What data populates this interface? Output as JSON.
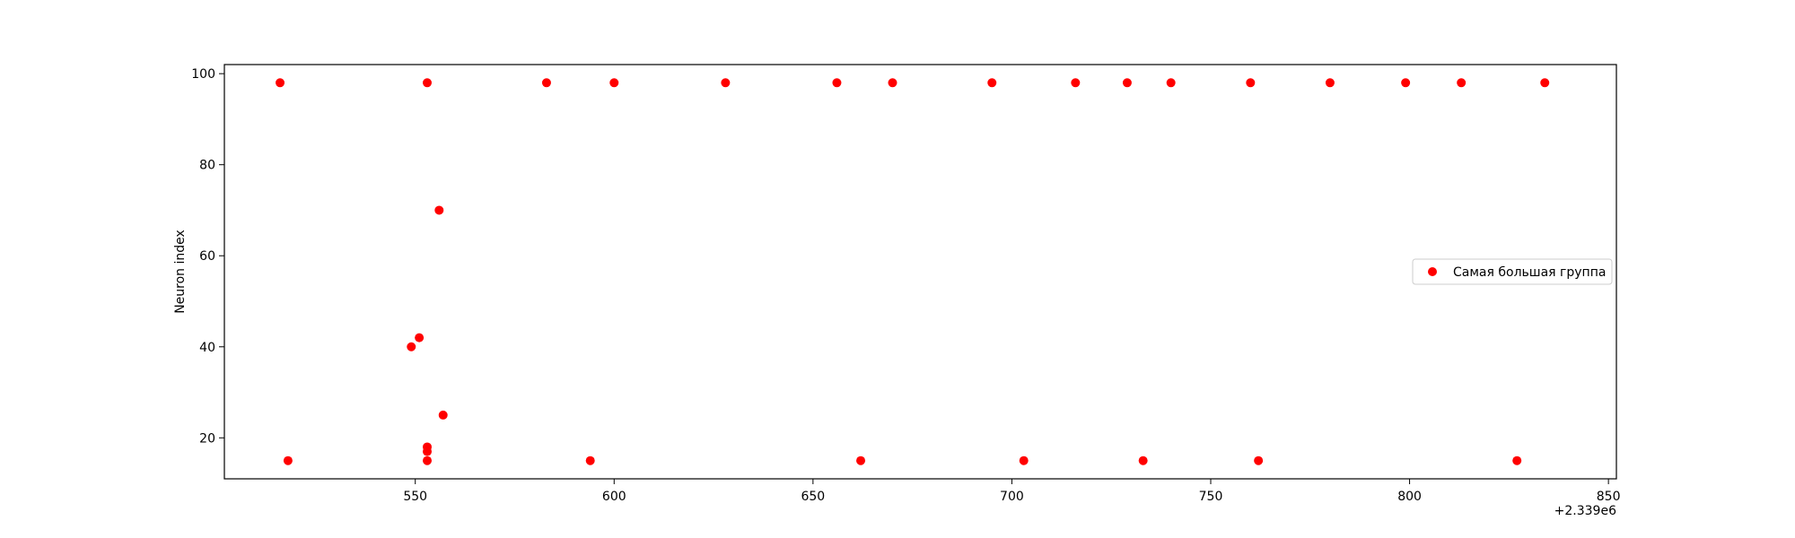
{
  "chart_data": {
    "type": "scatter",
    "title": "",
    "xlabel": "",
    "ylabel": "Neuron index",
    "x_offset_label": "+2.339e6",
    "x_ticks": [
      550,
      600,
      650,
      700,
      750,
      800,
      850
    ],
    "y_ticks": [
      20,
      40,
      60,
      80,
      100
    ],
    "xlim": [
      502,
      852
    ],
    "ylim": [
      11,
      102
    ],
    "grid": false,
    "legend_position": "center-right",
    "series": [
      {
        "name": "Самая большая группа",
        "color": "#ff0000",
        "points": [
          {
            "x": 516,
            "y": 98
          },
          {
            "x": 553,
            "y": 98
          },
          {
            "x": 583,
            "y": 98
          },
          {
            "x": 600,
            "y": 98
          },
          {
            "x": 628,
            "y": 98
          },
          {
            "x": 656,
            "y": 98
          },
          {
            "x": 670,
            "y": 98
          },
          {
            "x": 695,
            "y": 98
          },
          {
            "x": 716,
            "y": 98
          },
          {
            "x": 729,
            "y": 98
          },
          {
            "x": 740,
            "y": 98
          },
          {
            "x": 760,
            "y": 98
          },
          {
            "x": 780,
            "y": 98
          },
          {
            "x": 799,
            "y": 98
          },
          {
            "x": 813,
            "y": 98
          },
          {
            "x": 834,
            "y": 98
          },
          {
            "x": 556,
            "y": 70
          },
          {
            "x": 551,
            "y": 42
          },
          {
            "x": 549,
            "y": 40
          },
          {
            "x": 557,
            "y": 25
          },
          {
            "x": 553,
            "y": 18
          },
          {
            "x": 553,
            "y": 17
          },
          {
            "x": 518,
            "y": 15
          },
          {
            "x": 553,
            "y": 15
          },
          {
            "x": 594,
            "y": 15
          },
          {
            "x": 662,
            "y": 15
          },
          {
            "x": 703,
            "y": 15
          },
          {
            "x": 733,
            "y": 15
          },
          {
            "x": 762,
            "y": 15
          },
          {
            "x": 827,
            "y": 15
          }
        ]
      }
    ]
  }
}
